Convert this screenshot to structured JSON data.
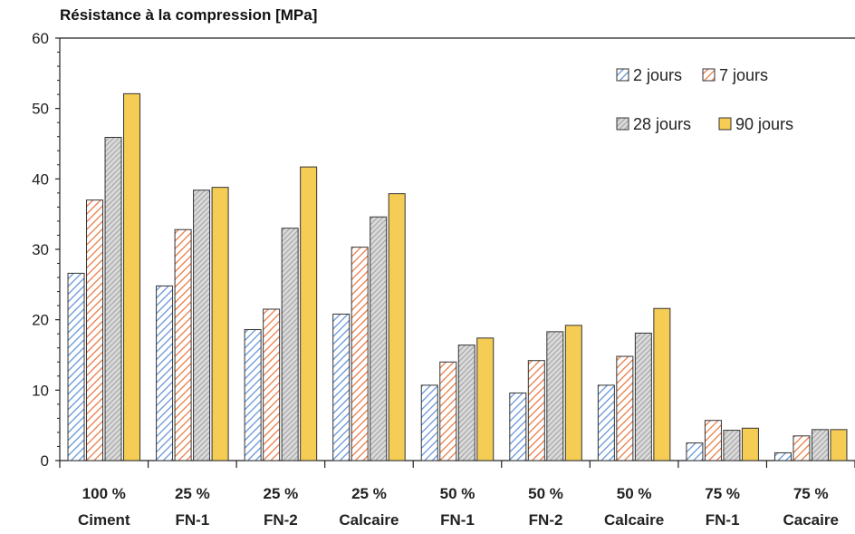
{
  "chart_data": {
    "type": "bar",
    "title": "Résistance à la compression [MPa]",
    "xlabel": "",
    "ylabel": "",
    "ylim": [
      0,
      60
    ],
    "yticks": [
      0,
      10,
      20,
      30,
      40,
      50,
      60
    ],
    "grid": false,
    "legend_position": "top-right",
    "categories": [
      [
        "100 %",
        "Ciment"
      ],
      [
        "25 %",
        "FN-1"
      ],
      [
        "25 %",
        "FN-2"
      ],
      [
        "25 %",
        "Calcaire"
      ],
      [
        "50 %",
        "FN-1"
      ],
      [
        "50 %",
        "FN-2"
      ],
      [
        "50 %",
        "Calcaire"
      ],
      [
        "75 %",
        "FN-1"
      ],
      [
        "75 %",
        "Cacaire"
      ]
    ],
    "series": [
      {
        "name": "2 jours",
        "color": "#5b8fd6",
        "pattern": "hatch-blue",
        "values": [
          26.6,
          24.8,
          18.6,
          20.8,
          10.7,
          9.6,
          10.7,
          2.5,
          1.1
        ]
      },
      {
        "name": "7 jours",
        "color": "#e8733a",
        "pattern": "hatch-orange",
        "values": [
          37.0,
          32.8,
          21.5,
          30.3,
          14.0,
          14.2,
          14.8,
          5.7,
          3.5
        ]
      },
      {
        "name": "28 jours",
        "color": "#8a8a8a",
        "pattern": "hatch-gray",
        "values": [
          45.9,
          38.4,
          33.0,
          34.6,
          16.4,
          18.3,
          18.1,
          4.3,
          4.4
        ]
      },
      {
        "name": "90 jours",
        "color": "#f2c94c",
        "pattern": "solid-yellow",
        "values": [
          52.1,
          38.8,
          41.7,
          37.9,
          17.4,
          19.2,
          21.6,
          4.6,
          4.4
        ]
      }
    ]
  }
}
